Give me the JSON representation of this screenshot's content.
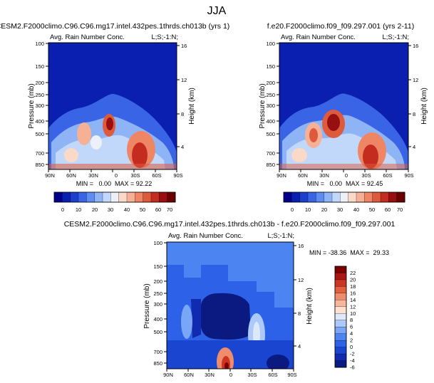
{
  "figure": {
    "title": "JJA"
  },
  "colors": {
    "scale_abs": [
      "#00008a",
      "#0a1fb0",
      "#1c3fd0",
      "#3a64e6",
      "#5e8cf0",
      "#8fb4f6",
      "#c2d8fb",
      "#eef0f8",
      "#fbd9c8",
      "#f5b096",
      "#ee8666",
      "#de5a3d",
      "#c42c20",
      "#980f10",
      "#6a0000"
    ],
    "scale_diff": [
      "#0a1a80",
      "#102bb0",
      "#1a45d0",
      "#2d62e8",
      "#4c84f2",
      "#79a6f6",
      "#acc9fa",
      "#dde9fb",
      "#fde0cf",
      "#f7b79c",
      "#ef8c6c",
      "#e2603f",
      "#cb3522",
      "#a91414",
      "#7a0000"
    ]
  },
  "chart_data": [
    {
      "type": "heatmap",
      "title": "CESM2.F2000climo.C96.C96.mg17.intel.432pes.1thrds.ch013b (yrs 1)",
      "subtitle_left": "Avg. Rain Number Conc.",
      "subtitle_right": "L;S;-1:N;",
      "ylabel": "Pressure (mb)",
      "ylabel_right": "Height (km)",
      "x_ticks": [
        "90N",
        "60N",
        "30N",
        "0",
        "30S",
        "60S",
        "90S"
      ],
      "y_ticks": [
        "100",
        "150",
        "200",
        "250",
        "300",
        "400",
        "500",
        "700",
        "850"
      ],
      "y_ticks_right": [
        "16",
        "12",
        "8",
        "4"
      ],
      "stats": "MIN =   0.00  MAX = 92.22",
      "colorbar_labels": [
        "0",
        "10",
        "20",
        "30",
        "40",
        "50",
        "60",
        "70"
      ]
    },
    {
      "type": "heatmap",
      "title": "f.e20.F2000climo.f09_f09.297.001 (yrs 2-11)",
      "subtitle_left": "Avg. Rain Number Conc.",
      "subtitle_right": "L;S;-1:N;",
      "ylabel": "Pressure (mb)",
      "ylabel_right": "Height (km)",
      "x_ticks": [
        "90N",
        "60N",
        "30N",
        "0",
        "30S",
        "60S",
        "90S"
      ],
      "y_ticks": [
        "100",
        "150",
        "200",
        "250",
        "300",
        "400",
        "500",
        "700",
        "850"
      ],
      "y_ticks_right": [
        "16",
        "12",
        "8",
        "4"
      ],
      "stats": "MIN =   0.00  MAX = 92.45",
      "colorbar_labels": [
        "0",
        "10",
        "20",
        "30",
        "40",
        "50",
        "60",
        "70"
      ]
    },
    {
      "type": "heatmap",
      "title": "CESM2.F2000climo.C96.C96.mg17.intel.432pes.1thrds.ch013b - f.e20.F2000climo.f09_f09.297.001",
      "subtitle_left": "Avg. Rain Number Conc.",
      "subtitle_right": "L;S;-1:N;",
      "ylabel": "Pressure (mb)",
      "ylabel_right": "Height (km)",
      "x_ticks": [
        "90N",
        "60N",
        "30N",
        "0",
        "30S",
        "60S",
        "90S"
      ],
      "y_ticks": [
        "100",
        "150",
        "200",
        "250",
        "300",
        "400",
        "500",
        "700",
        "850"
      ],
      "y_ticks_right": [
        "16",
        "12",
        "8",
        "4"
      ],
      "stats": "MIN = -38.36  MAX =  29.33",
      "colorbar_labels": [
        "22",
        "20",
        "18",
        "16",
        "14",
        "12",
        "10",
        "8",
        "6",
        "4",
        "2",
        "0",
        "-2",
        "-4",
        "-6"
      ]
    }
  ]
}
